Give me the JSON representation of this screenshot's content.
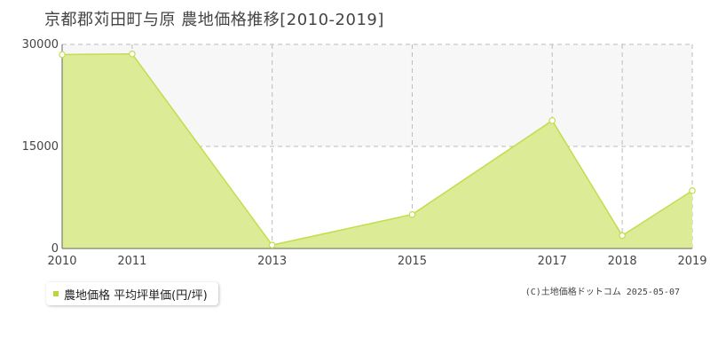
{
  "title": "京都郡苅田町与原 農地価格推移[2010-2019]",
  "legend": {
    "label": "農地価格 平均坪単価(円/坪)"
  },
  "copyright": "(C)土地価格ドットコム 2025-05-07",
  "colors": {
    "fill": "#dbeb96",
    "line": "#c2dd4e",
    "band": "#f7f7f7",
    "grid": "#bbbbbb",
    "axis": "#666666",
    "swatch": "#b8d640"
  },
  "chart_data": {
    "type": "area",
    "title": "京都郡苅田町与原 農地価格推移[2010-2019]",
    "x": [
      2010,
      2011,
      2013,
      2015,
      2017,
      2018,
      2019
    ],
    "xticks": [
      "2010",
      "2011",
      "2013",
      "2015",
      "2017",
      "2018",
      "2019"
    ],
    "yticks": [
      "0",
      "15000",
      "30000"
    ],
    "ylim": [
      0,
      30000
    ],
    "grid": true,
    "legend_position": "bottom-left",
    "series": [
      {
        "name": "農地価格 平均坪単価(円/坪)",
        "values": [
          28500,
          28600,
          500,
          5000,
          18800,
          1900,
          8500
        ]
      }
    ]
  }
}
